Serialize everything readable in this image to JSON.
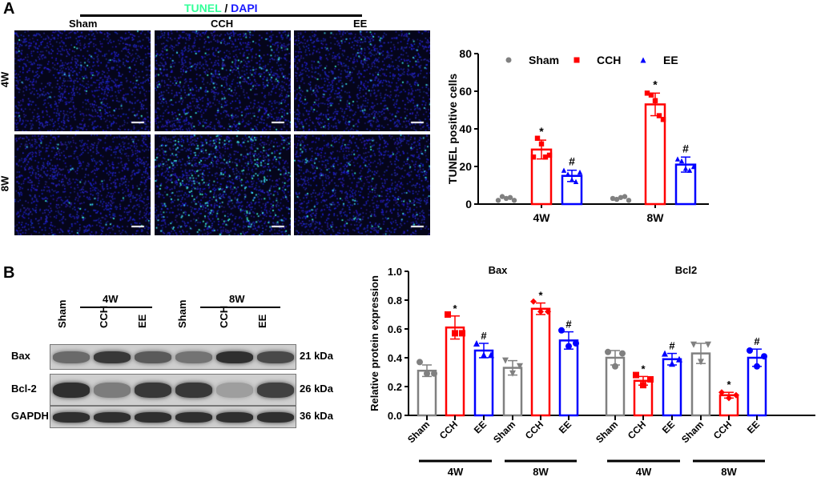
{
  "panels": {
    "a": "A",
    "b": "B"
  },
  "micrograph": {
    "stain_tunel": "TUNEL",
    "slash": "/",
    "stain_dapi": "DAPI",
    "columns": [
      "Sham",
      "CCH",
      "EE"
    ],
    "rows": [
      "4W",
      "8W"
    ],
    "tunel_density": [
      [
        0.1,
        0.4,
        0.25
      ],
      [
        0.1,
        1.0,
        0.3
      ]
    ]
  },
  "blot": {
    "time_groups": [
      "4W",
      "8W"
    ],
    "lanes": [
      "Sham",
      "CCH",
      "EE",
      "Sham",
      "CCH",
      "EE"
    ],
    "rows": [
      {
        "label": "Bax",
        "kda": "21 kDa",
        "intensity": [
          0.55,
          0.85,
          0.65,
          0.5,
          0.9,
          0.75
        ]
      },
      {
        "label": "Bcl-2",
        "kda": "26 kDa",
        "intensity": [
          0.9,
          0.45,
          0.85,
          0.85,
          0.25,
          0.8
        ]
      },
      {
        "label": "GAPDH",
        "kda": "36 kDa",
        "intensity": [
          0.9,
          0.9,
          0.9,
          0.9,
          0.9,
          0.9
        ]
      }
    ]
  },
  "colors": {
    "Sham": "#808080",
    "CCH": "#ff0000",
    "EE": "#0000ff",
    "tunel": "#33ffaa",
    "dapi": "#1a1aff"
  },
  "chart_data": [
    {
      "type": "bar",
      "title": "",
      "ylabel": "TUNEL positive cells",
      "ylim": [
        0,
        80
      ],
      "yticks": [
        "0",
        "20",
        "40",
        "60",
        "80"
      ],
      "categories": [
        "4W",
        "8W"
      ],
      "legend": [
        "Sham",
        "CCH",
        "EE"
      ],
      "legend_position": "top",
      "series": [
        {
          "name": "Sham",
          "values": [
            3,
            3
          ],
          "sd": [
            0.8,
            0.8
          ],
          "points": [
            [
              2,
              4,
              3,
              3.5,
              2
            ],
            [
              3,
              2.5,
              3.5,
              4,
              2
            ]
          ],
          "marks": [
            "",
            ""
          ]
        },
        {
          "name": "CCH",
          "values": [
            29,
            53
          ],
          "sd": [
            5,
            6
          ],
          "points": [
            [
              25,
              35,
              32,
              25,
              26
            ],
            [
              59,
              58,
              55,
              47,
              45
            ]
          ],
          "marks": [
            "*",
            "*"
          ]
        },
        {
          "name": "EE",
          "values": [
            15,
            21
          ],
          "sd": [
            3,
            4
          ],
          "points": [
            [
              18,
              16,
              13,
              12,
              17
            ],
            [
              24,
              23,
              19,
              18,
              20
            ]
          ],
          "marks": [
            "#",
            "#"
          ]
        }
      ]
    },
    {
      "type": "bar",
      "ylabel": "Relative protein expression",
      "ylim": [
        0,
        1.0
      ],
      "yticks": [
        "0.0",
        "0.2",
        "0.4",
        "0.6",
        "0.8",
        "1.0"
      ],
      "groups": [
        {
          "title": "Bax",
          "categories": [
            "Sham",
            "CCH",
            "EE",
            "Sham",
            "CCH",
            "EE"
          ],
          "time": [
            "4W",
            "8W"
          ],
          "values": [
            0.31,
            0.61,
            0.45,
            0.33,
            0.74,
            0.52
          ],
          "sd": [
            0.04,
            0.08,
            0.05,
            0.05,
            0.04,
            0.06
          ],
          "points": [
            [
              0.37,
              0.29,
              0.29
            ],
            [
              0.7,
              0.57,
              0.57
            ],
            [
              0.5,
              0.42,
              0.42
            ],
            [
              0.38,
              0.29,
              0.34
            ],
            [
              0.79,
              0.72,
              0.72
            ],
            [
              0.59,
              0.48,
              0.5
            ]
          ],
          "marks": [
            "",
            "*",
            "#",
            "",
            "*",
            "#"
          ]
        },
        {
          "title": "Bcl2",
          "categories": [
            "Sham",
            "CCH",
            "EE",
            "Sham",
            "CCH",
            "EE"
          ],
          "time": [
            "4W",
            "8W"
          ],
          "values": [
            0.4,
            0.24,
            0.39,
            0.43,
            0.14,
            0.4
          ],
          "sd": [
            0.05,
            0.03,
            0.04,
            0.07,
            0.02,
            0.06
          ],
          "points": [
            [
              0.44,
              0.34,
              0.43
            ],
            [
              0.28,
              0.21,
              0.25
            ],
            [
              0.43,
              0.36,
              0.39
            ],
            [
              0.49,
              0.37,
              0.49
            ],
            [
              0.16,
              0.12,
              0.14
            ],
            [
              0.45,
              0.34,
              0.41
            ]
          ],
          "marks": [
            "",
            "*",
            "#",
            "",
            "*",
            "#"
          ]
        }
      ]
    }
  ]
}
